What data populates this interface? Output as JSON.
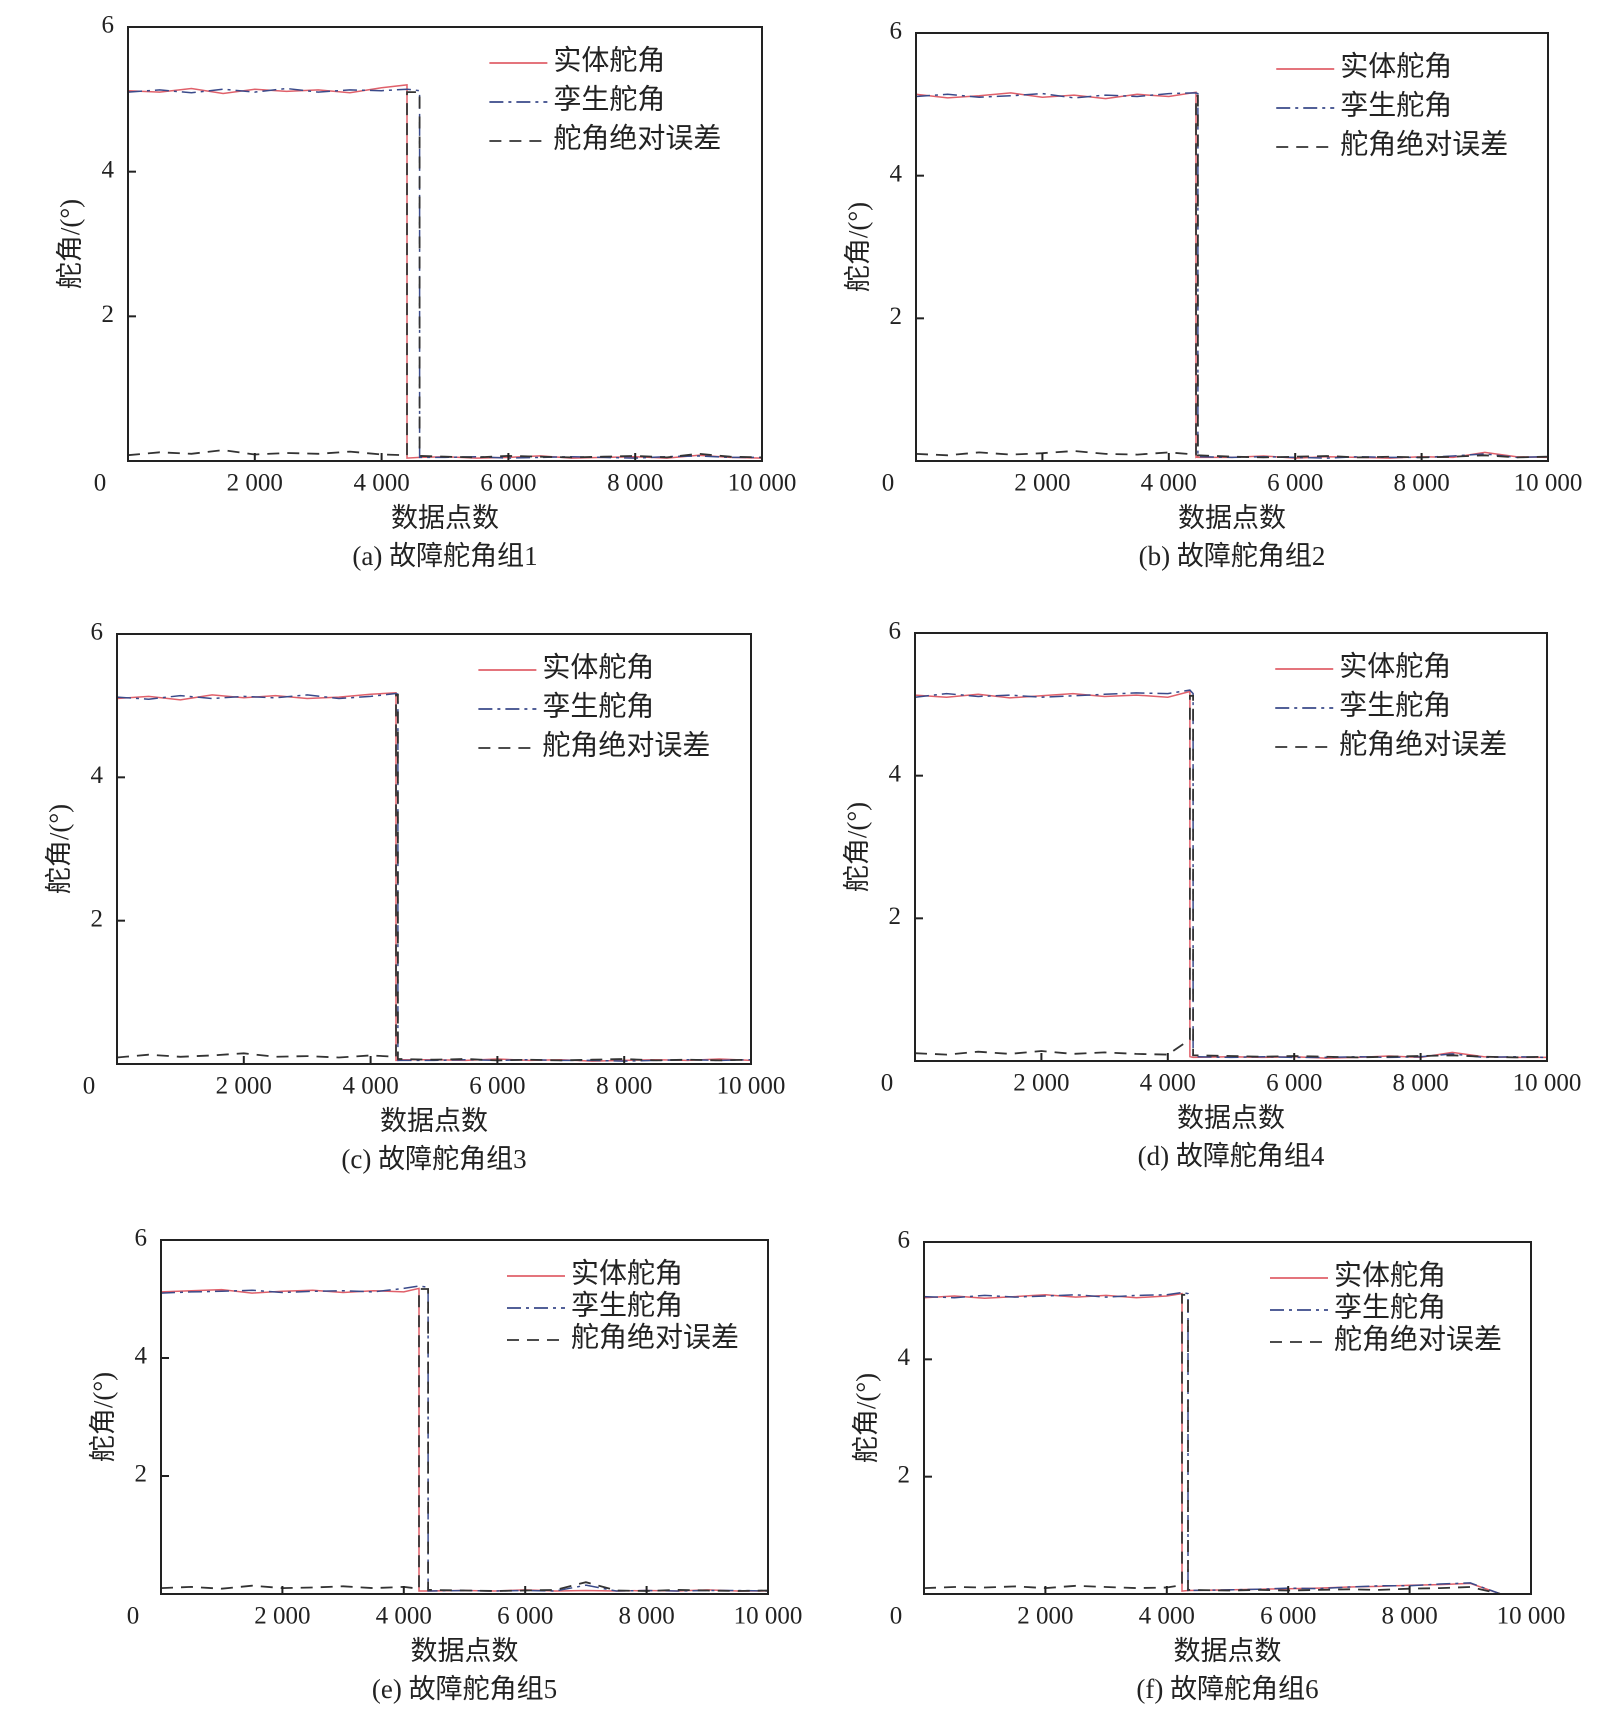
{
  "chart_data": [
    {
      "type": "line",
      "caption": "(a) 故障舵角组1",
      "x_label": "数据点数",
      "y_label": "舵角/(°)",
      "xlim": [
        0,
        10000
      ],
      "ylim": [
        0,
        6
      ],
      "xticks": [
        0,
        {
          "value": 2000,
          "label": "2 000"
        },
        {
          "value": 4000,
          "label": "4 000"
        },
        {
          "value": 6000,
          "label": "6 000"
        },
        {
          "value": 8000,
          "label": "8 000"
        },
        {
          "value": 10000,
          "label": "10 000"
        }
      ],
      "yticks": [
        2,
        4,
        6
      ],
      "x": [
        0,
        500,
        1000,
        1500,
        2000,
        2500,
        3000,
        3500,
        4000,
        4400,
        4400,
        4600,
        4600,
        5000,
        5500,
        6000,
        6500,
        7000,
        7500,
        8000,
        8500,
        9000,
        9500,
        10000
      ],
      "series": [
        {
          "name": "实体舵角",
          "color": "#e0606a",
          "values": [
            5.12,
            5.1,
            5.15,
            5.08,
            5.14,
            5.11,
            5.13,
            5.09,
            5.16,
            5.2,
            0.04,
            0.05,
            0.05,
            0.06,
            0.04,
            0.05,
            0.07,
            0.04,
            0.05,
            0.06,
            0.04,
            0.08,
            0.05,
            0.04
          ]
        },
        {
          "name": "孪生舵角",
          "color": "#3a4a8a",
          "values": [
            5.1,
            5.13,
            5.09,
            5.14,
            5.1,
            5.15,
            5.1,
            5.13,
            5.12,
            5.14,
            5.14,
            5.12,
            0.05,
            0.05,
            0.06,
            0.04,
            0.05,
            0.06,
            0.05,
            0.04,
            0.06,
            0.07,
            0.05,
            0.05
          ]
        },
        {
          "name": "舵角绝对误差",
          "color": "#333333",
          "values": [
            0.08,
            0.12,
            0.1,
            0.15,
            0.09,
            0.11,
            0.1,
            0.13,
            0.09,
            0.08,
            5.1,
            5.1,
            0.07,
            0.06,
            0.05,
            0.07,
            0.06,
            0.05,
            0.06,
            0.07,
            0.05,
            0.1,
            0.06,
            0.05
          ]
        }
      ]
    },
    {
      "type": "line",
      "caption": "(b) 故障舵角组2",
      "x_label": "数据点数",
      "y_label": "舵角/(°)",
      "xlim": [
        0,
        10000
      ],
      "ylim": [
        0,
        6
      ],
      "xticks": [
        0,
        {
          "value": 2000,
          "label": "2 000"
        },
        {
          "value": 4000,
          "label": "4 000"
        },
        {
          "value": 6000,
          "label": "6 000"
        },
        {
          "value": 8000,
          "label": "8 000"
        },
        {
          "value": 10000,
          "label": "10 000"
        }
      ],
      "yticks": [
        2,
        4,
        6
      ],
      "x": [
        0,
        500,
        1000,
        1500,
        2000,
        2500,
        3000,
        3500,
        4000,
        4430,
        4430,
        4460,
        4460,
        5000,
        5500,
        6000,
        6500,
        7000,
        7500,
        8000,
        8500,
        9000,
        9500,
        10000
      ],
      "series": [
        {
          "name": "实体舵角",
          "color": "#e0606a",
          "values": [
            5.14,
            5.09,
            5.12,
            5.16,
            5.1,
            5.13,
            5.08,
            5.14,
            5.11,
            5.17,
            0.05,
            0.06,
            0.05,
            0.05,
            0.07,
            0.04,
            0.06,
            0.05,
            0.04,
            0.06,
            0.05,
            0.12,
            0.06,
            0.05
          ]
        },
        {
          "name": "孪生舵角",
          "color": "#3a4a8a",
          "values": [
            5.11,
            5.14,
            5.1,
            5.12,
            5.15,
            5.09,
            5.13,
            5.11,
            5.15,
            5.16,
            5.16,
            5.15,
            0.06,
            0.05,
            0.06,
            0.05,
            0.04,
            0.06,
            0.05,
            0.05,
            0.07,
            0.1,
            0.05,
            0.06
          ]
        },
        {
          "name": "舵角绝对误差",
          "color": "#333333",
          "values": [
            0.1,
            0.08,
            0.12,
            0.09,
            0.11,
            0.14,
            0.1,
            0.09,
            0.12,
            0.09,
            5.12,
            5.12,
            0.08,
            0.06,
            0.05,
            0.06,
            0.07,
            0.05,
            0.06,
            0.05,
            0.06,
            0.08,
            0.05,
            0.06
          ]
        }
      ]
    },
    {
      "type": "line",
      "caption": "(c) 故障舵角组3",
      "x_label": "数据点数",
      "y_label": "舵角/(°)",
      "xlim": [
        0,
        10000
      ],
      "ylim": [
        0,
        6
      ],
      "xticks": [
        0,
        {
          "value": 2000,
          "label": "2 000"
        },
        {
          "value": 4000,
          "label": "4 000"
        },
        {
          "value": 6000,
          "label": "6 000"
        },
        {
          "value": 8000,
          "label": "8 000"
        },
        {
          "value": 10000,
          "label": "10 000"
        }
      ],
      "yticks": [
        2,
        4,
        6
      ],
      "x": [
        0,
        500,
        1000,
        1500,
        2000,
        2500,
        3000,
        3500,
        4000,
        4400,
        4400,
        4430,
        4430,
        5000,
        5500,
        6000,
        6500,
        7000,
        7500,
        8000,
        8500,
        9000,
        9500,
        10000
      ],
      "series": [
        {
          "name": "实体舵角",
          "color": "#e0606a",
          "values": [
            5.1,
            5.13,
            5.08,
            5.15,
            5.11,
            5.14,
            5.1,
            5.12,
            5.16,
            5.18,
            0.05,
            0.05,
            0.06,
            0.06,
            0.05,
            0.07,
            0.05,
            0.06,
            0.04,
            0.05,
            0.06,
            0.05,
            0.07,
            0.05
          ]
        },
        {
          "name": "孪生舵角",
          "color": "#3a4a8a",
          "values": [
            5.12,
            5.09,
            5.14,
            5.1,
            5.13,
            5.11,
            5.15,
            5.1,
            5.13,
            5.17,
            5.17,
            5.16,
            0.05,
            0.05,
            0.06,
            0.05,
            0.06,
            0.05,
            0.05,
            0.04,
            0.05,
            0.06,
            0.05,
            0.06
          ]
        },
        {
          "name": "舵角绝对误差",
          "color": "#333333",
          "values": [
            0.09,
            0.13,
            0.1,
            0.12,
            0.15,
            0.1,
            0.11,
            0.09,
            0.12,
            0.1,
            5.15,
            5.15,
            0.07,
            0.06,
            0.07,
            0.05,
            0.06,
            0.05,
            0.06,
            0.07,
            0.05,
            0.06,
            0.05,
            0.06
          ]
        }
      ]
    },
    {
      "type": "line",
      "caption": "(d) 故障舵角组4",
      "x_label": "数据点数",
      "y_label": "舵角/(°)",
      "xlim": [
        0,
        10000
      ],
      "ylim": [
        0,
        6
      ],
      "xticks": [
        0,
        {
          "value": 2000,
          "label": "2 000"
        },
        {
          "value": 4000,
          "label": "4 000"
        },
        {
          "value": 6000,
          "label": "6 000"
        },
        {
          "value": 8000,
          "label": "8 000"
        },
        {
          "value": 10000,
          "label": "10 000"
        }
      ],
      "yticks": [
        2,
        4,
        6
      ],
      "x": [
        0,
        500,
        1000,
        1500,
        2000,
        2500,
        3000,
        3500,
        4000,
        4350,
        4350,
        4400,
        4400,
        5000,
        5500,
        6000,
        6500,
        7000,
        7500,
        8000,
        8500,
        9000,
        9500,
        10000
      ],
      "series": [
        {
          "name": "实体舵角",
          "color": "#e0606a",
          "values": [
            5.13,
            5.1,
            5.14,
            5.09,
            5.12,
            5.15,
            5.11,
            5.13,
            5.1,
            5.18,
            0.06,
            0.05,
            0.05,
            0.06,
            0.05,
            0.06,
            0.04,
            0.05,
            0.07,
            0.05,
            0.12,
            0.06,
            0.05,
            0.05
          ]
        },
        {
          "name": "孪生舵角",
          "color": "#3a4a8a",
          "values": [
            5.1,
            5.15,
            5.11,
            5.13,
            5.1,
            5.12,
            5.14,
            5.16,
            5.15,
            5.2,
            5.2,
            5.15,
            0.06,
            0.05,
            0.06,
            0.05,
            0.05,
            0.06,
            0.05,
            0.06,
            0.1,
            0.05,
            0.06,
            0.05
          ]
        },
        {
          "name": "舵角绝对误差",
          "color": "#333333",
          "values": [
            0.11,
            0.09,
            0.13,
            0.1,
            0.14,
            0.1,
            0.12,
            0.1,
            0.09,
            0.3,
            5.12,
            5.12,
            0.08,
            0.07,
            0.06,
            0.07,
            0.06,
            0.05,
            0.06,
            0.07,
            0.08,
            0.06,
            0.05,
            0.06
          ]
        }
      ]
    },
    {
      "type": "line",
      "caption": "(e) 故障舵角组5",
      "x_label": "数据点数",
      "y_label": "舵角/(°)",
      "xlim": [
        0,
        10000
      ],
      "ylim": [
        0,
        6
      ],
      "xticks": [
        0,
        {
          "value": 2000,
          "label": "2 000"
        },
        {
          "value": 4000,
          "label": "4 000"
        },
        {
          "value": 6000,
          "label": "6 000"
        },
        {
          "value": 8000,
          "label": "8 000"
        },
        {
          "value": 10000,
          "label": "10 000"
        }
      ],
      "yticks": [
        2,
        4,
        6
      ],
      "x": [
        0,
        500,
        1000,
        1500,
        2000,
        2500,
        3000,
        3500,
        4000,
        4250,
        4250,
        4400,
        4400,
        5000,
        5500,
        6000,
        6500,
        7000,
        7500,
        8000,
        8500,
        9000,
        9500,
        10000
      ],
      "series": [
        {
          "name": "实体舵角",
          "color": "#e0606a",
          "values": [
            5.12,
            5.14,
            5.16,
            5.1,
            5.13,
            5.15,
            5.11,
            5.14,
            5.12,
            5.18,
            0.05,
            0.05,
            0.05,
            0.06,
            0.05,
            0.07,
            0.05,
            0.06,
            0.05,
            0.06,
            0.05,
            0.07,
            0.05,
            0.05
          ]
        },
        {
          "name": "孪生舵角",
          "color": "#3a4a8a",
          "values": [
            5.1,
            5.12,
            5.13,
            5.15,
            5.11,
            5.13,
            5.14,
            5.12,
            5.18,
            5.22,
            5.22,
            5.2,
            0.05,
            0.06,
            0.05,
            0.06,
            0.05,
            0.15,
            0.05,
            0.06,
            0.05,
            0.06,
            0.06,
            0.05
          ]
        },
        {
          "name": "舵角绝对误差",
          "color": "#333333",
          "values": [
            0.1,
            0.12,
            0.09,
            0.14,
            0.1,
            0.11,
            0.13,
            0.1,
            0.12,
            0.09,
            5.17,
            5.17,
            0.07,
            0.06,
            0.05,
            0.06,
            0.07,
            0.2,
            0.06,
            0.05,
            0.07,
            0.06,
            0.05,
            0.06
          ]
        }
      ]
    },
    {
      "type": "line",
      "caption": "(f) 故障舵角组6",
      "x_label": "数据点数",
      "y_label": "舵角/(°)",
      "xlim": [
        0,
        10000
      ],
      "ylim": [
        0,
        6
      ],
      "xticks": [
        0,
        {
          "value": 2000,
          "label": "2 000"
        },
        {
          "value": 4000,
          "label": "4 000"
        },
        {
          "value": 6000,
          "label": "6 000"
        },
        {
          "value": 8000,
          "label": "8 000"
        },
        {
          "value": 10000,
          "label": "10 000"
        }
      ],
      "yticks": [
        2,
        4,
        6
      ],
      "x": [
        0,
        500,
        1000,
        1500,
        2000,
        2500,
        3000,
        3500,
        4000,
        4250,
        4250,
        4350,
        4350,
        5000,
        5500,
        6000,
        6500,
        7000,
        7500,
        8000,
        8500,
        9000,
        9500,
        10000
      ],
      "series": [
        {
          "name": "实体舵角",
          "color": "#e0606a",
          "values": [
            5.05,
            5.08,
            5.04,
            5.07,
            5.1,
            5.06,
            5.09,
            5.05,
            5.08,
            5.12,
            0.05,
            0.06,
            0.06,
            0.07,
            0.08,
            0.09,
            0.1,
            0.12,
            0.13,
            0.15,
            0.16,
            0.18,
            0,
            0
          ]
        },
        {
          "name": "孪生舵角",
          "color": "#3a4a8a",
          "values": [
            5.07,
            5.05,
            5.09,
            5.06,
            5.08,
            5.1,
            5.06,
            5.09,
            5.1,
            5.14,
            5.14,
            5.12,
            0.06,
            0.07,
            0.08,
            0.1,
            0.09,
            0.12,
            0.14,
            0.14,
            0.17,
            0.19,
            0,
            0
          ]
        },
        {
          "name": "舵角绝对误差",
          "color": "#333333",
          "values": [
            0.1,
            0.12,
            0.11,
            0.13,
            0.1,
            0.14,
            0.12,
            0.1,
            0.11,
            0.15,
            5.1,
            5.1,
            0.07,
            0.06,
            0.07,
            0.06,
            0.07,
            0.08,
            0.07,
            0.09,
            0.1,
            0.12,
            0,
            0
          ]
        }
      ]
    }
  ]
}
